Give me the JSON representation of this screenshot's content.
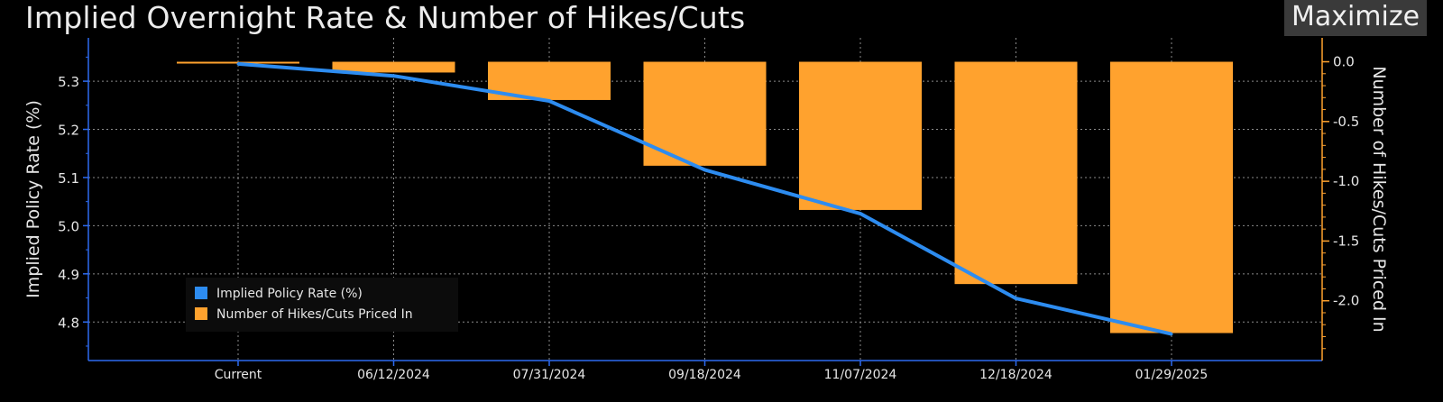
{
  "header": {
    "title": "Implied Overnight Rate & Number of Hikes/Cuts",
    "maximize_label": "Maximize"
  },
  "colors": {
    "background": "#000000",
    "bars": "#FFA22E",
    "line": "#2D8CF0",
    "axis": "#2D6BF0",
    "grid": "#8a8a8a"
  },
  "chart_data": {
    "type": "bar",
    "categories": [
      "Current",
      "06/12/2024",
      "07/31/2024",
      "09/18/2024",
      "11/07/2024",
      "12/18/2024",
      "01/29/2025"
    ],
    "ylabel_left": "Implied Policy Rate (%)",
    "ylabel_right": "Number of Hikes/Cuts Priced In",
    "left_ticks": [
      "5.3",
      "5.2",
      "5.1",
      "5.0",
      "4.9",
      "4.8"
    ],
    "right_ticks": [
      "0.0",
      "-0.5",
      "-1.0",
      "-1.5",
      "-2.0"
    ],
    "ylim_left": [
      4.72,
      5.39
    ],
    "ylim_right": [
      -2.5,
      0.2
    ],
    "grid": true,
    "legend_position": "bottom-left",
    "series": [
      {
        "name": "Implied Policy Rate (%)",
        "type": "line",
        "axis": "left",
        "values": [
          5.336,
          5.311,
          5.259,
          5.116,
          5.025,
          4.849,
          4.775
        ]
      },
      {
        "name": "Number of Hikes/Cuts Priced In",
        "type": "bar",
        "axis": "right",
        "values": [
          -0.01,
          -0.09,
          -0.32,
          -0.87,
          -1.24,
          -1.86,
          -2.27
        ]
      }
    ]
  }
}
